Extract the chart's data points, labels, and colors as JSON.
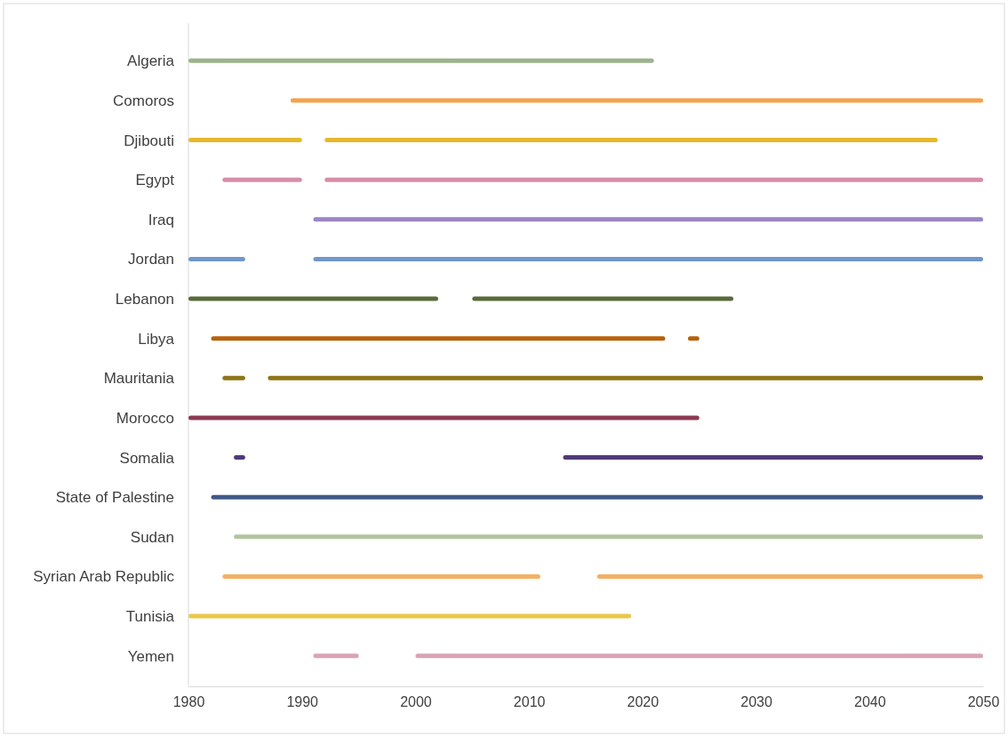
{
  "chart_data": {
    "type": "bar",
    "orientation": "horizontal",
    "categories": [
      "Algeria",
      "Comoros",
      "Djibouti",
      "Egypt",
      "Iraq",
      "Jordan",
      "Lebanon",
      "Libya",
      "Mauritania",
      "Morocco",
      "Somalia",
      "State of Palestine",
      "Sudan",
      "Syrian Arab Republic",
      "Tunisia",
      "Yemen"
    ],
    "series": [
      {
        "colors": [
          "#9bb38a",
          "#f4a24a",
          "#e6b82a",
          "#d68ea8",
          "#9b85c6",
          "#7098c8",
          "#5a6b3a",
          "#b8610a",
          "#8f7418",
          "#8c3a52",
          "#513a7a",
          "#3f5a88",
          "#b4c4a0",
          "#f4b066",
          "#eac84a",
          "#d8a4b6"
        ],
        "base": [
          1980,
          1989,
          1980,
          1983,
          1991,
          1980,
          1980,
          1982,
          1983,
          1980,
          1984,
          1982,
          1984,
          1983,
          1980,
          1991
        ],
        "values": [
          41,
          61,
          10,
          7,
          59,
          5,
          22,
          40,
          2,
          45,
          1,
          68,
          66,
          28,
          39,
          4
        ]
      },
      {
        "colors": [
          null,
          null,
          "#e6b82a",
          "#d68ea8",
          null,
          "#7098c8",
          "#5a6b3a",
          "#b8610a",
          "#8f7418",
          null,
          "#513a7a",
          null,
          null,
          "#f4b066",
          null,
          "#d8a4b6"
        ],
        "base": [
          null,
          null,
          1992,
          1992,
          null,
          1991,
          2005,
          2024,
          1987,
          null,
          2013,
          null,
          null,
          2016,
          null,
          2000
        ],
        "values": [
          null,
          null,
          54,
          58,
          null,
          59,
          23,
          1,
          63,
          null,
          37,
          null,
          null,
          34,
          null,
          50
        ]
      }
    ],
    "xlim": [
      1980,
      2050
    ],
    "xticks": [
      1980,
      1990,
      2000,
      2010,
      2020,
      2030,
      2040,
      2050
    ]
  }
}
